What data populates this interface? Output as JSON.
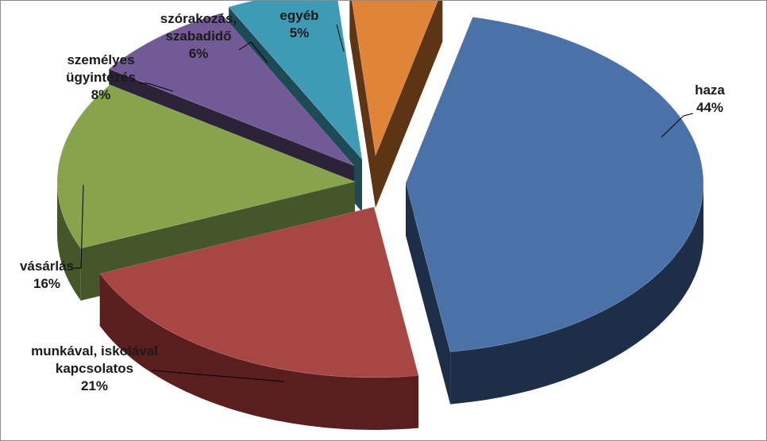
{
  "chart_data": {
    "type": "pie",
    "title": "",
    "slices": [
      {
        "label_lines": [
          "haza",
          "44%"
        ],
        "value": 44,
        "color": "#4a72a8",
        "side_color": "#1e2d48"
      },
      {
        "label_lines": [
          "munkával, iskolával",
          "kapcsolatos",
          "21%"
        ],
        "value": 21,
        "color": "#a84644",
        "side_color": "#5a1e1e"
      },
      {
        "label_lines": [
          "vásárlás",
          "16%"
        ],
        "value": 16,
        "color": "#87a44c",
        "side_color": "#44562a"
      },
      {
        "label_lines": [
          "személyes",
          "ügyintézés",
          "8%"
        ],
        "value": 8,
        "color": "#725a97",
        "side_color": "#2c2338"
      },
      {
        "label_lines": [
          "szórakozás,",
          "szabadidő",
          "6%"
        ],
        "value": 6,
        "color": "#3f9bb5",
        "side_color": "#1e4a55"
      },
      {
        "label_lines": [
          "egyéb",
          "5%"
        ],
        "value": 5,
        "color": "#df8438",
        "side_color": "#5d3515"
      }
    ],
    "legend": "none",
    "data_labels": "outside with leader lines"
  }
}
